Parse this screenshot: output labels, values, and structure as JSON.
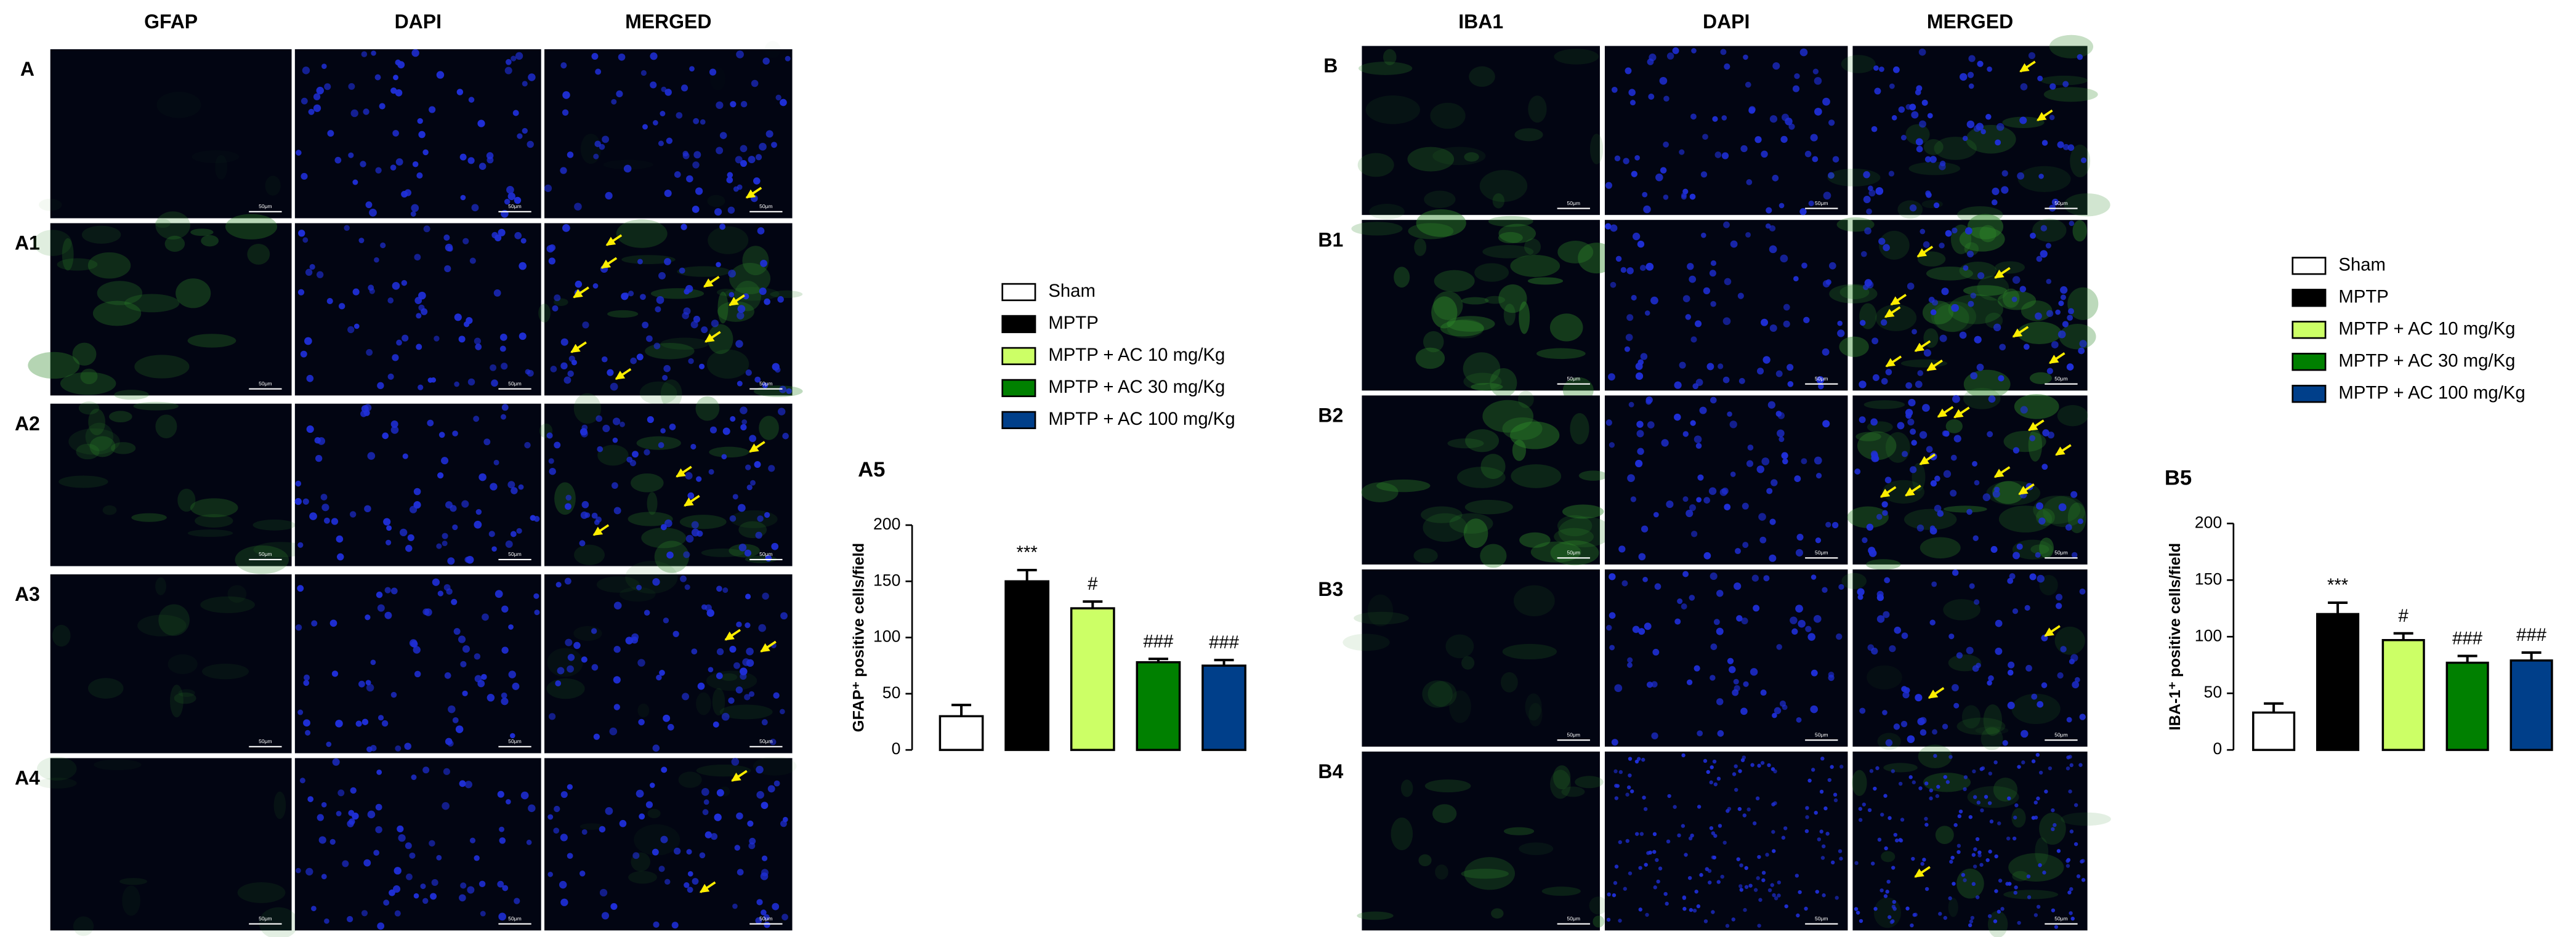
{
  "panels": {
    "left_columns": [
      "GFAP",
      "DAPI",
      "MERGED"
    ],
    "left_rows": [
      "A",
      "A1",
      "A2",
      "A3",
      "A4"
    ],
    "right_columns": [
      "IBA1",
      "DAPI",
      "MERGED"
    ],
    "right_rows": [
      "B",
      "B1",
      "B2",
      "B3",
      "B4"
    ],
    "scale_bar_label": "50μm"
  },
  "chart_data": [
    {
      "type": "bar",
      "panel_label": "A5",
      "y_label": "GFAP⁺ positive cells/field",
      "ylim": [
        0,
        200
      ],
      "yticks": [
        0,
        50,
        100,
        150,
        200
      ],
      "series": [
        {
          "name": "Sham",
          "color": "#ffffff",
          "values": [
            30
          ],
          "errors": [
            10
          ]
        },
        {
          "name": "MPTP",
          "color": "#000000",
          "values": [
            150
          ],
          "errors": [
            10
          ],
          "annotation": "***"
        },
        {
          "name": "MPTP + AC 10 mg/Kg",
          "color": "#ccff66",
          "values": [
            126
          ],
          "errors": [
            6
          ],
          "annotation": "#"
        },
        {
          "name": "MPTP + AC 30 mg/Kg",
          "color": "#008000",
          "values": [
            78
          ],
          "errors": [
            3
          ],
          "annotation": "###"
        },
        {
          "name": "MPTP + AC 100 mg/Kg",
          "color": "#003f8a",
          "values": [
            75
          ],
          "errors": [
            5
          ],
          "annotation": "###"
        }
      ]
    },
    {
      "type": "bar",
      "panel_label": "B5",
      "y_label": "IBA-1⁺ positive cells/field",
      "ylim": [
        0,
        200
      ],
      "yticks": [
        0,
        50,
        100,
        150,
        200
      ],
      "series": [
        {
          "name": "Sham",
          "color": "#ffffff",
          "values": [
            33
          ],
          "errors": [
            8
          ]
        },
        {
          "name": "MPTP",
          "color": "#000000",
          "values": [
            120
          ],
          "errors": [
            10
          ],
          "annotation": "***"
        },
        {
          "name": "MPTP + AC 10 mg/Kg",
          "color": "#ccff66",
          "values": [
            97
          ],
          "errors": [
            6
          ],
          "annotation": "#"
        },
        {
          "name": "MPTP + AC 30 mg/Kg",
          "color": "#008000",
          "values": [
            77
          ],
          "errors": [
            6
          ],
          "annotation": "###"
        },
        {
          "name": "MPTP + AC 100 mg/Kg",
          "color": "#003f8a",
          "values": [
            79
          ],
          "errors": [
            7
          ],
          "annotation": "###"
        }
      ]
    }
  ]
}
